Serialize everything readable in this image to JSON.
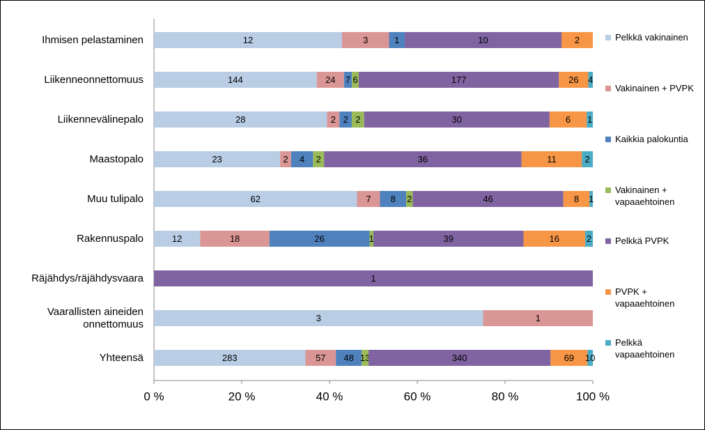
{
  "chart_data": {
    "type": "stacked_bar_100",
    "orientation": "horizontal",
    "categories": [
      "Ihmisen pelastaminen",
      "Liikenneonnettomuus",
      "Liikennevälinepalo",
      "Maastopalo",
      "Muu tulipalo",
      "Rakennuspalo",
      "Räjähdys/räjähdysvaara",
      "Vaarallisten aineiden onnettomuus",
      "Yhteensä"
    ],
    "series": [
      {
        "name": "Pelkkä vakinainen",
        "color": "#b9cde5",
        "values": [
          12,
          144,
          28,
          23,
          62,
          12,
          null,
          3,
          283
        ]
      },
      {
        "name": "Vakinainen + PVPK",
        "color": "#da9694",
        "values": [
          3,
          24,
          2,
          2,
          7,
          18,
          null,
          1,
          57
        ]
      },
      {
        "name": "Kaikkia palokuntia",
        "color": "#4f81bd",
        "values": [
          1,
          7,
          2,
          4,
          8,
          26,
          null,
          null,
          48
        ]
      },
      {
        "name": "Vakinainen + vapaaehtoinen",
        "color": "#9bbb59",
        "values": [
          null,
          6,
          2,
          2,
          2,
          1,
          null,
          null,
          13
        ]
      },
      {
        "name": "Pelkkä PVPK",
        "color": "#8064a2",
        "values": [
          10,
          177,
          30,
          36,
          46,
          39,
          1,
          null,
          340
        ]
      },
      {
        "name": "PVPK + vapaaehtoinen",
        "color": "#f79646",
        "values": [
          2,
          26,
          6,
          11,
          8,
          16,
          null,
          null,
          69
        ]
      },
      {
        "name": "Pelkkä vapaaehtoinen",
        "color": "#4bacc6",
        "values": [
          null,
          4,
          1,
          2,
          1,
          2,
          null,
          null,
          10
        ]
      }
    ],
    "xlim": [
      0,
      100
    ],
    "xticks": [
      {
        "value": 0,
        "label": "0 %"
      },
      {
        "value": 20,
        "label": "20 %"
      },
      {
        "value": 40,
        "label": "40 %"
      },
      {
        "value": 60,
        "label": "60 %"
      },
      {
        "value": 80,
        "label": "80 %"
      },
      {
        "value": 100,
        "label": "100 %"
      }
    ],
    "legend": "right"
  }
}
